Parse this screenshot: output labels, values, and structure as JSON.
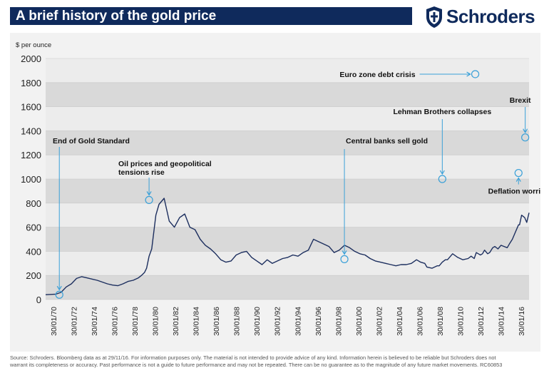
{
  "header": {
    "title": "A brief history of the gold price",
    "brand": "Schroders",
    "brand_color": "#0f2a5c",
    "logo_icon": "schroders-crest-icon"
  },
  "chart_data": {
    "type": "line",
    "title": "A brief history of the gold price",
    "ylabel": "$ per ounce",
    "xlabel": "",
    "ylim": [
      0,
      2000
    ],
    "y_ticks": [
      0,
      200,
      400,
      600,
      800,
      1000,
      1200,
      1400,
      1600,
      1800,
      2000
    ],
    "x_range": [
      1970.0,
      2016.92
    ],
    "x_tick_labels": [
      "30/01/70",
      "30/01/72",
      "30/01/74",
      "30/01/76",
      "30/01/78",
      "30/01/80",
      "30/01/82",
      "30/01/84",
      "30/01/86",
      "30/01/88",
      "30/01/90",
      "30/01/92",
      "30/01/94",
      "30/01/96",
      "30/01/98",
      "30/01/00",
      "30/01/02",
      "30/01/04",
      "30/01/06",
      "30/01/08",
      "30/01/10",
      "30/01/12",
      "30/01/14",
      "30/01/16"
    ],
    "alternating_bands": true,
    "line_color": "#1c2e5e",
    "series": [
      {
        "x": [
          1970.0,
          1971.0,
          1971.5,
          1972.0,
          1972.5,
          1973.0,
          1973.5,
          1974.0,
          1974.5,
          1975.0,
          1975.5,
          1976.0,
          1976.5,
          1977.0,
          1977.5,
          1978.0,
          1978.5,
          1979.0,
          1979.3,
          1979.6,
          1979.8,
          1980.04,
          1980.3,
          1980.5,
          1980.7,
          1981.0,
          1981.5,
          1982.0,
          1982.5,
          1983.0,
          1983.5,
          1984.0,
          1984.5,
          1985.0,
          1985.5,
          1986.0,
          1986.5,
          1987.0,
          1987.5,
          1988.0,
          1988.5,
          1989.0,
          1989.5,
          1990.0,
          1990.5,
          1991.0,
          1991.5,
          1992.0,
          1992.5,
          1993.0,
          1993.5,
          1994.0,
          1994.5,
          1995.0,
          1995.5,
          1996.0,
          1996.5,
          1997.0,
          1997.5,
          1998.0,
          1998.5,
          1999.0,
          1999.5,
          2000.0,
          2000.5,
          2001.0,
          2001.5,
          2002.0,
          2002.5,
          2003.0,
          2003.5,
          2004.0,
          2004.5,
          2005.0,
          2005.5,
          2006.0,
          2006.4,
          2006.8,
          2007.0,
          2007.5,
          2008.0,
          2008.2,
          2008.5,
          2008.8,
          2009.0,
          2009.5,
          2010.0,
          2010.5,
          2011.0,
          2011.3,
          2011.6,
          2011.8,
          2012.0,
          2012.2,
          2012.4,
          2012.6,
          2012.9,
          2013.1,
          2013.4,
          2013.6,
          2013.9,
          2014.2,
          2014.5,
          2014.8,
          2015.0,
          2015.3,
          2015.6,
          2015.9,
          2016.0,
          2016.2,
          2016.5,
          2016.7,
          2016.92
        ],
        "y": [
          40,
          45,
          60,
          105,
          130,
          175,
          190,
          180,
          170,
          160,
          145,
          130,
          120,
          115,
          130,
          150,
          160,
          180,
          200,
          225,
          260,
          360,
          420,
          560,
          700,
          790,
          840,
          650,
          600,
          680,
          710,
          600,
          580,
          500,
          450,
          420,
          380,
          330,
          310,
          320,
          370,
          390,
          400,
          350,
          320,
          290,
          330,
          300,
          320,
          340,
          350,
          370,
          360,
          390,
          410,
          500,
          480,
          460,
          440,
          390,
          410,
          450,
          430,
          400,
          380,
          370,
          340,
          320,
          310,
          300,
          290,
          280,
          290,
          290,
          300,
          330,
          310,
          300,
          270,
          260,
          280,
          280,
          310,
          330,
          330,
          380,
          350,
          330,
          340,
          360,
          340,
          390,
          380,
          370,
          380,
          410,
          380,
          390,
          430,
          440,
          420,
          450,
          440,
          430,
          460,
          500,
          560,
          620,
          620,
          700,
          680,
          640,
          720
        ]
      }
    ],
    "annotations": [
      {
        "label": "End of Gold Standard",
        "x": 1971.33,
        "y": 40
      },
      {
        "label": "Oil prices and geopolitical tensions rise",
        "x": 1980.04,
        "y": 826
      },
      {
        "label": "Central banks sell gold",
        "x": 1999.0,
        "y": 335
      },
      {
        "label": "Lehman Brothers collapses",
        "x": 2008.5,
        "y": 1000
      },
      {
        "label": "Euro zone debt crisis",
        "x": 2011.7,
        "y": 1870
      },
      {
        "label": "Deflation worries",
        "x": 2015.9,
        "y": 1050
      },
      {
        "label": "Brexit",
        "x": 2016.55,
        "y": 1345
      }
    ]
  },
  "footer": {
    "source_line1": "Source: Schroders. Bloomberg data as at 29/11/16. For information purposes only. The material is not intended to provide advice of any kind. Information herein is believed to be reliable but Schroders does not",
    "source_line2": "warrant its completeness or accuracy. Past performance is not a guide to future performance and may not be repeated. There can be no guarantee as to the magnitude of any future market movements. RC60853"
  }
}
